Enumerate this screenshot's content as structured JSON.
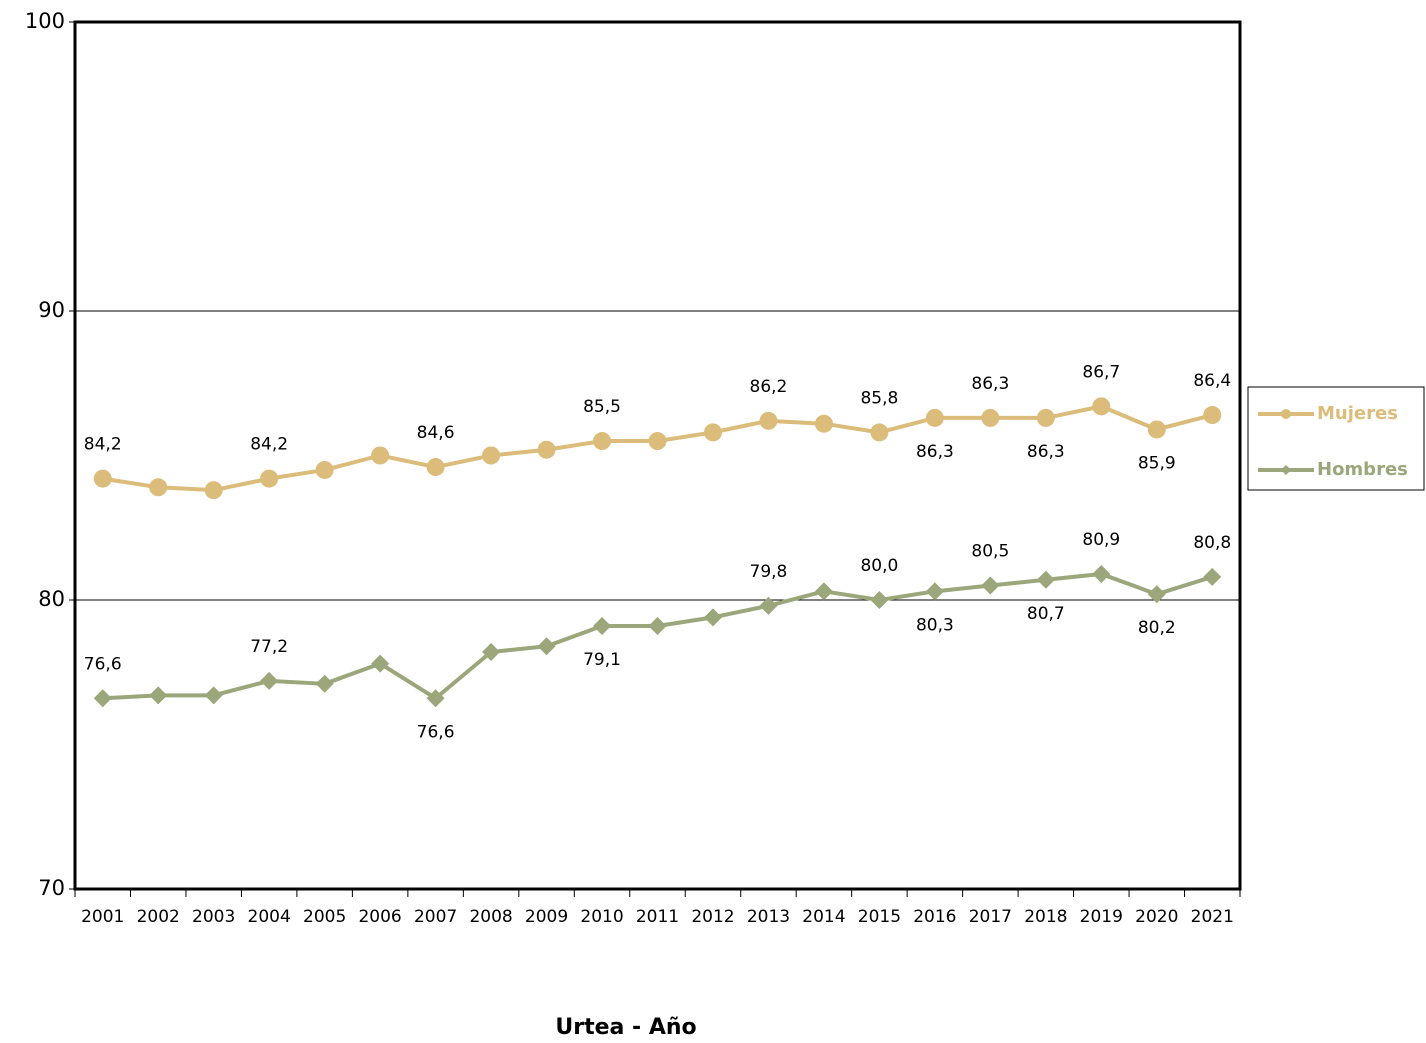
{
  "chart_data": {
    "type": "line",
    "x_label": "Urtea - Año",
    "categories": [
      "2001",
      "2002",
      "2003",
      "2004",
      "2005",
      "2006",
      "2007",
      "2008",
      "2009",
      "2010",
      "2011",
      "2012",
      "2013",
      "2014",
      "2015",
      "2016",
      "2017",
      "2018",
      "2019",
      "2020",
      "2021"
    ],
    "series": [
      {
        "name": "Mujeres",
        "color": "#dcbc7a",
        "marker": "circle",
        "values": [
          84.2,
          83.9,
          83.8,
          84.2,
          84.5,
          85.0,
          84.6,
          85.0,
          85.2,
          85.5,
          85.5,
          85.8,
          86.2,
          86.1,
          85.8,
          86.3,
          86.3,
          86.3,
          86.7,
          85.9,
          86.4
        ],
        "value_labels": [
          "84,2",
          null,
          null,
          "84,2",
          null,
          null,
          "84,6",
          null,
          null,
          "85,5",
          null,
          null,
          "86,2",
          null,
          "85,8",
          "86,3",
          "86,3",
          "86,3",
          "86,7",
          "85,9",
          "86,4"
        ]
      },
      {
        "name": "Hombres",
        "color": "#9ba67a",
        "marker": "diamond",
        "values": [
          76.6,
          76.7,
          76.7,
          77.2,
          77.1,
          77.8,
          76.6,
          78.2,
          78.4,
          79.1,
          79.1,
          79.4,
          79.8,
          80.3,
          80.0,
          80.3,
          80.5,
          80.7,
          80.9,
          80.2,
          80.8
        ],
        "value_labels": [
          "76,6",
          null,
          null,
          "77,2",
          null,
          null,
          "76,6",
          null,
          null,
          "79,1",
          null,
          null,
          "79,8",
          null,
          "80,0",
          "80,3",
          "80,5",
          "80,7",
          "80,9",
          "80,2",
          "80,8"
        ]
      }
    ],
    "ylim": [
      70,
      100
    ],
    "yticks": [
      70,
      80,
      90,
      100
    ],
    "grid": true,
    "legend": "right"
  }
}
